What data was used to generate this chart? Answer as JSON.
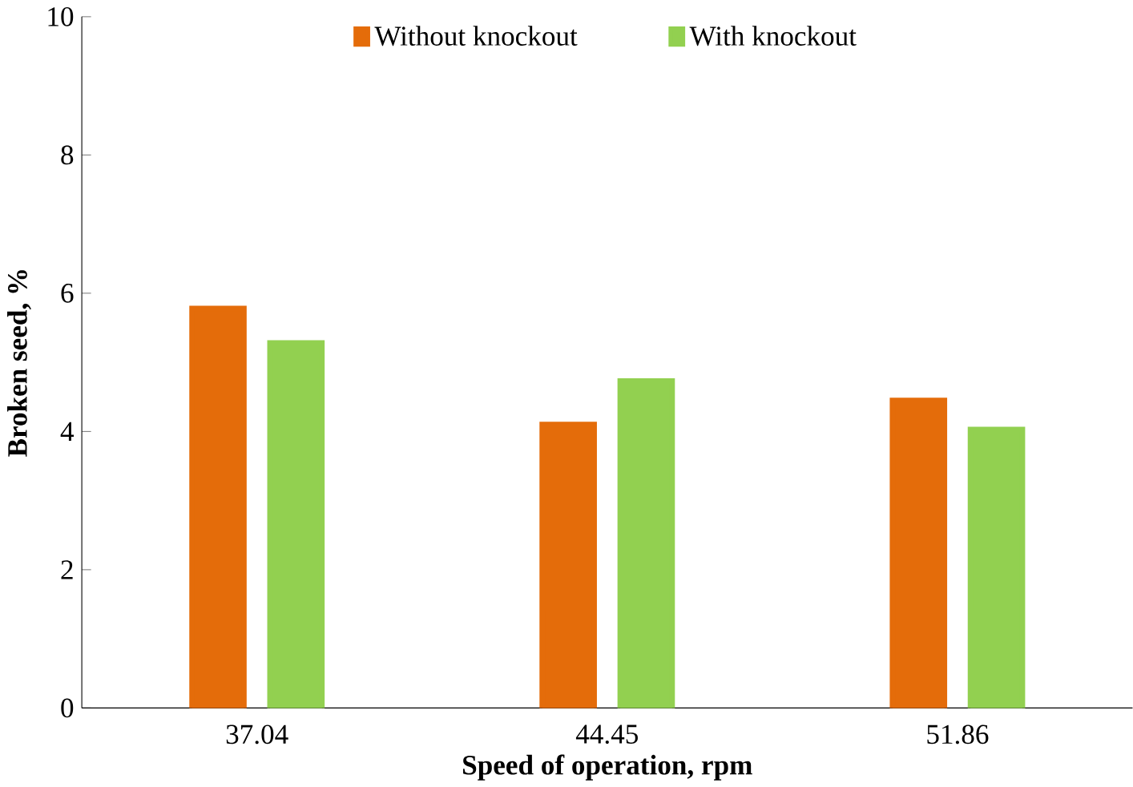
{
  "chart_data": {
    "type": "bar",
    "xlabel": "Speed of operation, rpm",
    "ylabel": "Broken seed, %",
    "categories": [
      "37.04",
      "44.45",
      "51.86"
    ],
    "series": [
      {
        "name": "Without knockout",
        "color": "#e46c0a",
        "values": [
          5.78,
          4.1,
          4.45
        ]
      },
      {
        "name": "With knockout",
        "color": "#92d050",
        "values": [
          5.28,
          4.73,
          4.03
        ]
      }
    ],
    "ylim": [
      0,
      10
    ],
    "yticks": [
      0,
      2,
      4,
      6,
      8,
      10
    ],
    "grid": false,
    "legend": "top"
  }
}
